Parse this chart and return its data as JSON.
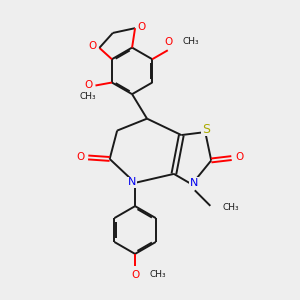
{
  "background_color": "#eeeeee",
  "bond_color": "#1a1a1a",
  "atom_colors": {
    "O": "#ff0000",
    "N": "#0000ee",
    "S": "#aaaa00",
    "C": "#1a1a1a"
  },
  "lw": 1.4,
  "dbo": 0.055,
  "xlim": [
    0,
    10
  ],
  "ylim": [
    0,
    10
  ]
}
